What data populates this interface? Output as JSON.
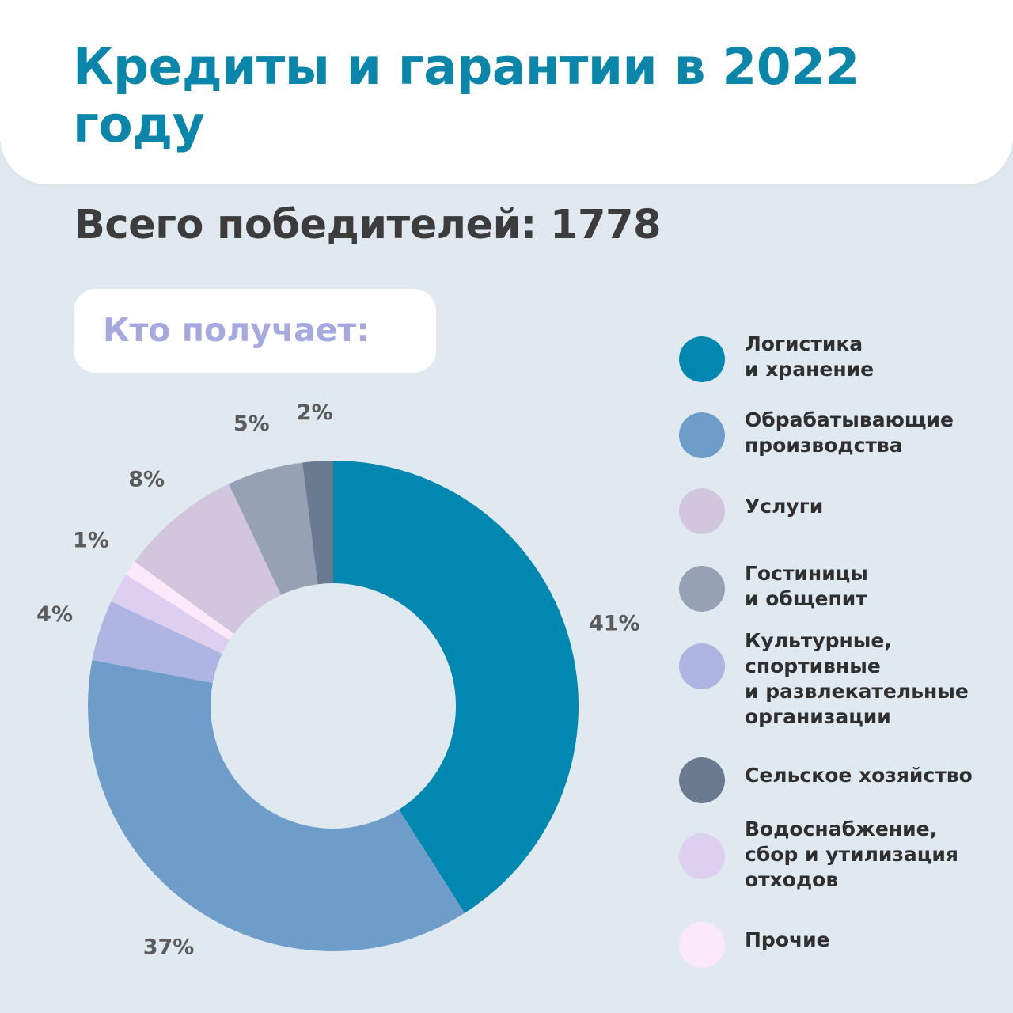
{
  "header": {
    "title": "Кредиты и гарантии в 2022 году"
  },
  "summary": {
    "total_winners": "Всего победителей: 1778"
  },
  "section": {
    "label": "Кто получает:"
  },
  "colors": {
    "title": "#0a86ab",
    "subtitle": "#3c3c3c",
    "section_label": "#a6a9df",
    "legend_text": "#2f2f2f",
    "data_label": "#5b5b5b",
    "background": "#e1e9f0"
  },
  "chart_data": {
    "type": "pie",
    "title": "",
    "categories": [
      "Логистика\nи хранение",
      "Обрабатывающие\nпроизводства",
      "Услуги",
      "Гостиницы\nи общепит",
      "Культурные,\nспортивные\nи развлекательные\nорганизации",
      "Сельское хозяйство",
      "Водоснабжение,\nсбор и утилизация\nотходов",
      "Прочие"
    ],
    "values": [
      41,
      37,
      8,
      5,
      4,
      2,
      2,
      1
    ],
    "data_labels": [
      "41%",
      "37%",
      "8%",
      "5%",
      "4%",
      "2%",
      "",
      "1%"
    ],
    "segment_order": [
      0,
      1,
      4,
      6,
      7,
      2,
      3,
      5
    ],
    "colors": [
      "#0088b0",
      "#6f9dca",
      "#d2c5de",
      "#97a1b5",
      "#aeb5e2",
      "#6a7b91",
      "#ddcff0",
      "#fbe8f9"
    ],
    "style": "donut",
    "legend_position": "right"
  }
}
